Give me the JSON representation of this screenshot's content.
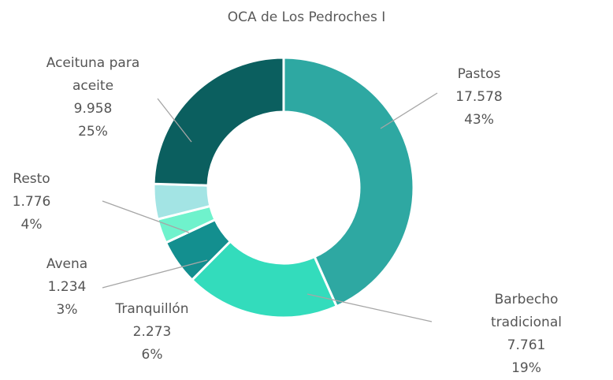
{
  "chart_data": {
    "type": "donut",
    "title": "OCA de Los Pedroches I",
    "categories": [
      "Pastos",
      "Barbecho tradicional",
      "Tranquillón",
      "Avena",
      "Resto",
      "Aceituna para aceite"
    ],
    "values": [
      17578,
      7761,
      2273,
      1234,
      1776,
      9958
    ],
    "value_labels": [
      "17.578",
      "7.761",
      "2.273",
      "1.234",
      "1.776",
      "9.958"
    ],
    "percent_labels": [
      "43%",
      "19%",
      "6%",
      "3%",
      "4%",
      "25%"
    ],
    "colors": [
      "#2ea8a2",
      "#33dcbc",
      "#138f8f",
      "#6ff2cc",
      "#a3e4e4",
      "#0b5f5f"
    ]
  }
}
